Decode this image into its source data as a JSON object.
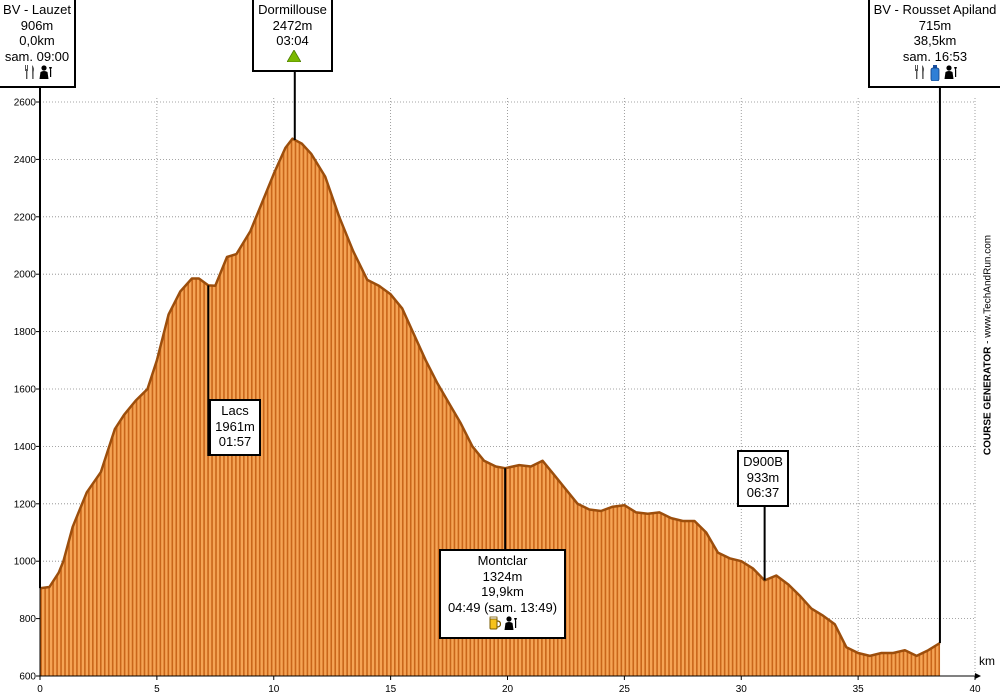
{
  "chart_data": {
    "type": "area",
    "xlabel": "km",
    "ylabel": "",
    "title": "",
    "xlim": [
      0,
      40
    ],
    "ylim": [
      600,
      2600
    ],
    "x_ticks": [
      0,
      5,
      10,
      15,
      20,
      25,
      30,
      35,
      40
    ],
    "y_ticks": [
      600,
      800,
      1000,
      1200,
      1400,
      1600,
      1800,
      2000,
      2200,
      2400,
      2600
    ],
    "grid": true,
    "colors": {
      "fill": "#f5a455",
      "fill_dark": "#c9661a",
      "line": "#9c4e0c"
    },
    "series": [
      {
        "x": [
          0,
          0.4,
          0.8,
          1.0,
          1.4,
          2.0,
          2.6,
          3.2,
          3.6,
          4.1,
          4.6,
          5.0,
          5.5,
          6.0,
          6.5,
          6.8,
          7.2,
          7.5,
          8.0,
          8.4,
          9.0,
          9.5,
          10.0,
          10.5,
          10.8,
          11.2,
          11.6,
          12.2,
          12.8,
          13.4,
          14.0,
          14.5,
          15.0,
          15.5,
          16.0,
          16.5,
          17.0,
          17.5,
          18.0,
          18.5,
          19.0,
          19.5,
          19.9,
          20.5,
          21.0,
          21.5,
          22.0,
          22.5,
          23.0,
          23.5,
          24.0,
          24.5,
          25.0,
          25.5,
          26.0,
          26.5,
          27.0,
          27.5,
          28.0,
          28.5,
          29.0,
          29.5,
          30.0,
          30.5,
          31.0,
          31.5,
          32.0,
          32.5,
          33.0,
          33.5,
          34.0,
          34.5,
          35.0,
          35.5,
          36.0,
          36.5,
          37.0,
          37.5,
          38.0,
          38.5
        ],
        "y": [
          906,
          910,
          960,
          1000,
          1120,
          1240,
          1310,
          1460,
          1510,
          1560,
          1600,
          1700,
          1860,
          1940,
          1985,
          1985,
          1961,
          1960,
          2060,
          2070,
          2150,
          2250,
          2350,
          2440,
          2472,
          2455,
          2420,
          2340,
          2200,
          2080,
          1980,
          1960,
          1930,
          1880,
          1790,
          1700,
          1620,
          1550,
          1480,
          1400,
          1350,
          1330,
          1324,
          1335,
          1330,
          1350,
          1300,
          1250,
          1200,
          1180,
          1175,
          1190,
          1195,
          1170,
          1165,
          1170,
          1150,
          1140,
          1140,
          1100,
          1030,
          1010,
          1000,
          975,
          933,
          950,
          920,
          880,
          835,
          810,
          780,
          700,
          680,
          670,
          680,
          680,
          690,
          670,
          690,
          715
        ]
      }
    ],
    "waypoints": [
      {
        "name": "BV - Lauzet",
        "alt": "906m",
        "dist": "0,0km",
        "time": "sam. 09:00",
        "km": 0,
        "icons": [
          "restaurant-icon",
          "assistance-icon"
        ]
      },
      {
        "name": "Dormillouse",
        "alt": "2472m",
        "time": "03:04",
        "km": 10.9,
        "icons": [
          "summit-icon"
        ]
      },
      {
        "name": "Lacs",
        "alt": "1961m",
        "time": "01:57",
        "km": 7.2,
        "icons": []
      },
      {
        "name": "Montclar",
        "alt": "1324m",
        "dist": "19,9km",
        "time": "04:49 (sam. 13:49)",
        "km": 19.9,
        "icons": [
          "drink-icon",
          "assistance-icon"
        ]
      },
      {
        "name": "D900B",
        "alt": "933m",
        "time": "06:37",
        "km": 31.0,
        "icons": []
      },
      {
        "name": "BV - Rousset Apiland",
        "alt": "715m",
        "dist": "38,5km",
        "time": "sam. 16:53",
        "km": 38.5,
        "icons": [
          "restaurant-icon",
          "water-icon",
          "assistance-icon"
        ]
      }
    ]
  },
  "branding": {
    "bold": "COURSE GENERATOR",
    "rest": " - www.TechAndRun.com"
  }
}
